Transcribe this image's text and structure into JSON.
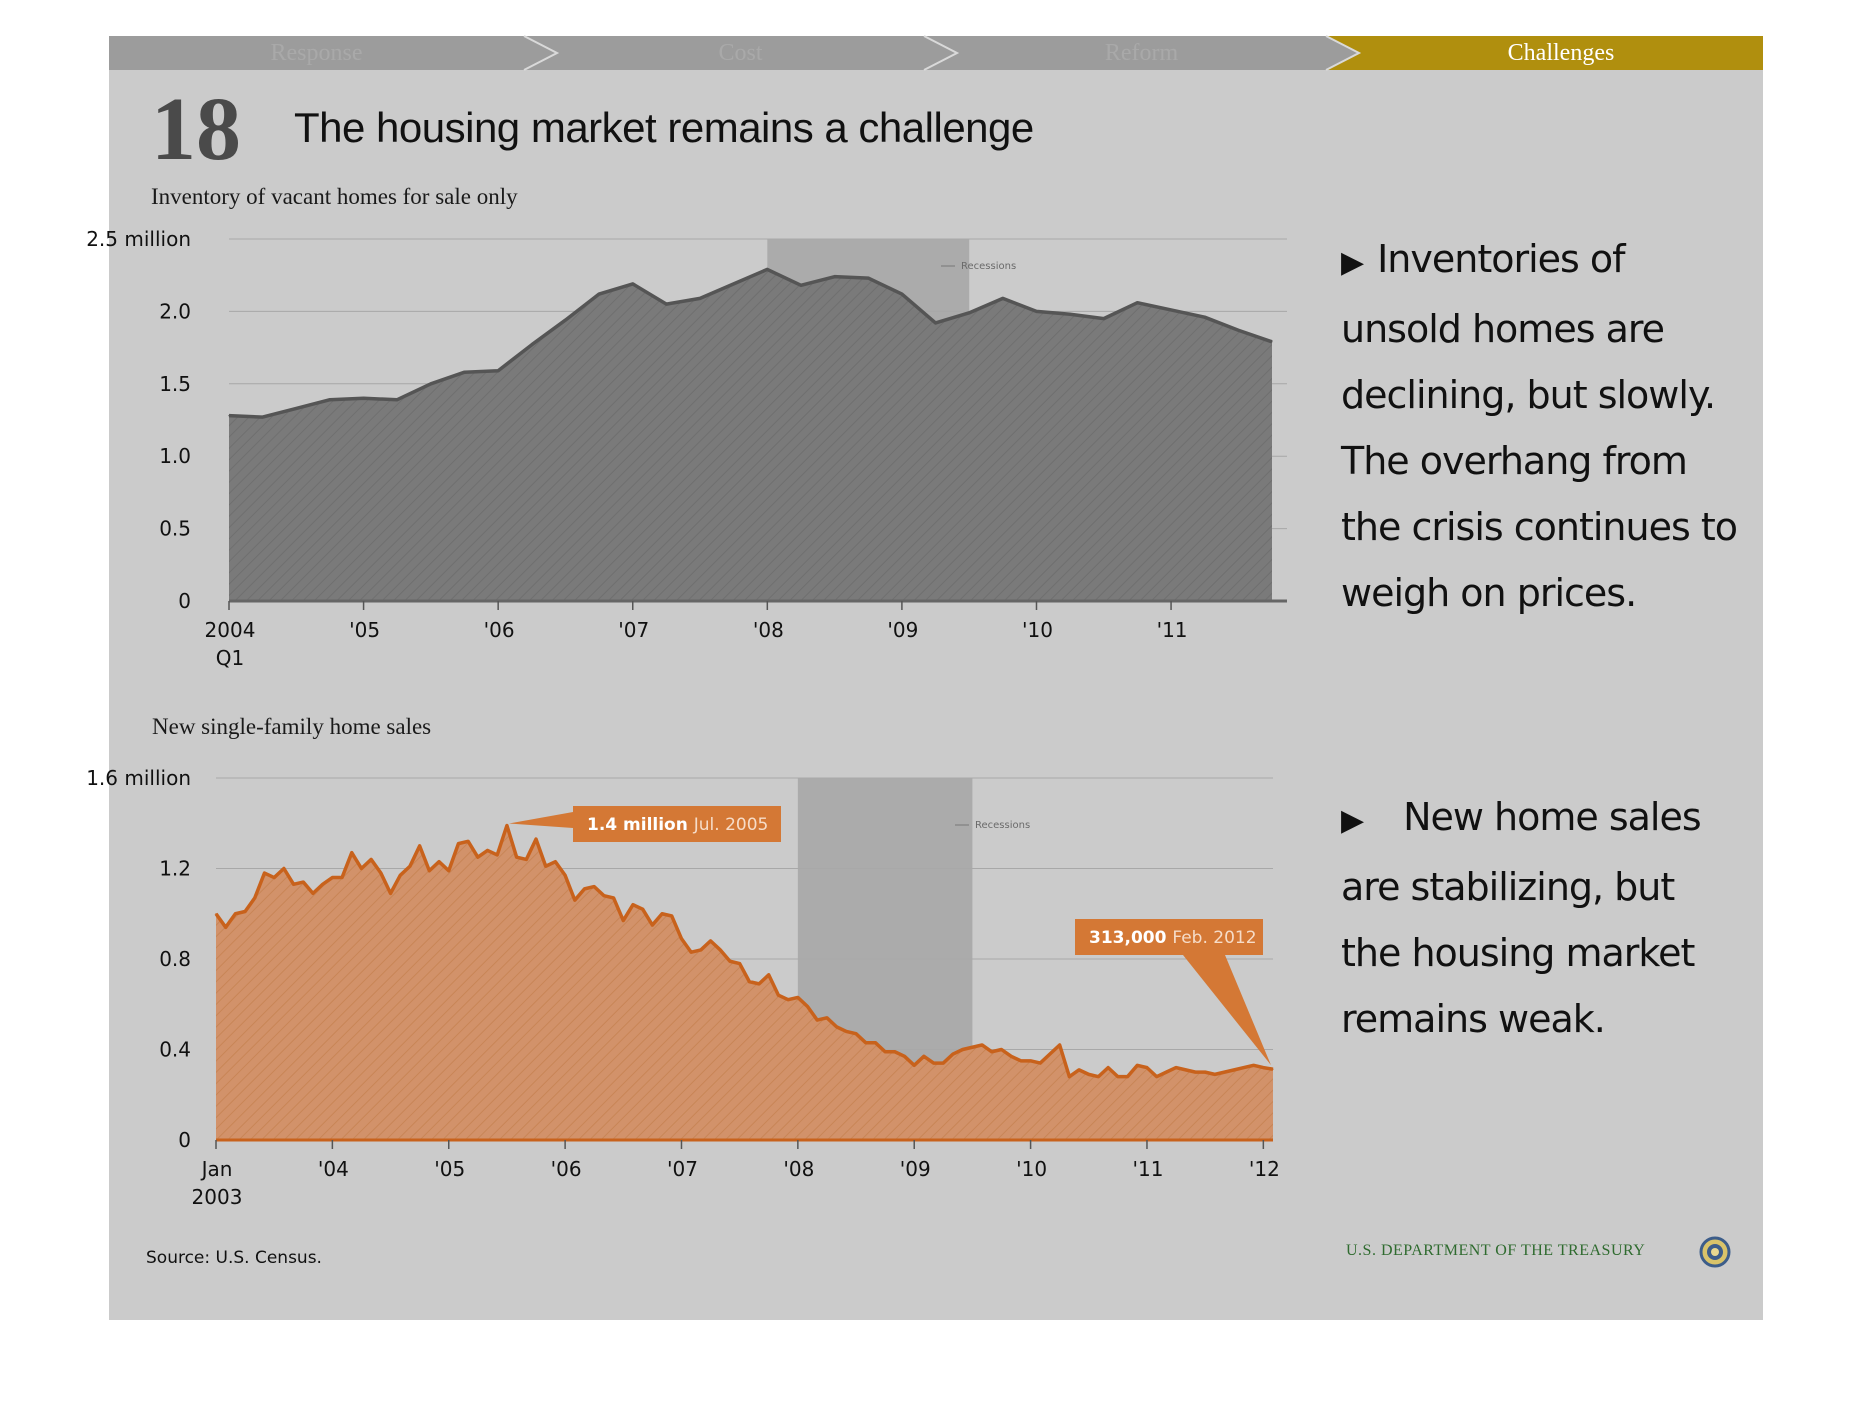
{
  "nav": {
    "steps": [
      "Response",
      "Cost",
      "Reform",
      "Challenges"
    ],
    "active_index": 3
  },
  "slide": {
    "number": "18",
    "title": "The housing market remains a challenge"
  },
  "colors": {
    "background": "#cbcbcb",
    "nav_inactive": "#9c9c9c",
    "nav_active": "#b08f0e",
    "inventory_fill": "#7a7a7a",
    "inventory_line": "#555555",
    "sales_fill": "#d2926a",
    "sales_line": "#c8621c",
    "recession": "#ababab",
    "callout": "#d47835",
    "treasury_text": "#2f6b2f"
  },
  "bullets": [
    {
      "icon": "triangle-right-icon",
      "text": "Inventories of unsold homes are declining, but slowly. The overhang from the crisis continues to weigh on prices."
    },
    {
      "icon": "triangle-right-icon",
      "text": "New home sales are stabilizing, but the housing market remains weak."
    }
  ],
  "source": "Source: U.S. Census.",
  "footer": {
    "agency": "U.S. DEPARTMENT OF THE TREASURY",
    "seal_icon": "treasury-seal-icon"
  },
  "chart_data": [
    {
      "type": "area",
      "title": "Inventory of vacant homes for sale only",
      "ytick_labels": [
        "0",
        "0.5",
        "1.0",
        "1.5",
        "2.0",
        "2.5 million"
      ],
      "ylim": [
        0,
        2.5
      ],
      "yticks": [
        0,
        0.5,
        1.0,
        1.5,
        2.0,
        2.5
      ],
      "xlim": [
        2004.0,
        2011.75
      ],
      "xticks": [
        {
          "x": 2004.0,
          "label": [
            "2004",
            "Q1"
          ]
        },
        {
          "x": 2005.0,
          "label": [
            "'05"
          ]
        },
        {
          "x": 2006.0,
          "label": [
            "'06"
          ]
        },
        {
          "x": 2007.0,
          "label": [
            "'07"
          ]
        },
        {
          "x": 2008.0,
          "label": [
            "'08"
          ]
        },
        {
          "x": 2009.0,
          "label": [
            "'09"
          ]
        },
        {
          "x": 2010.0,
          "label": [
            "'10"
          ]
        },
        {
          "x": 2011.0,
          "label": [
            "'11"
          ]
        }
      ],
      "grid": true,
      "recession": {
        "start": 2008.0,
        "end": 2009.5,
        "label": "Recessions"
      },
      "series": [
        {
          "x": [
            2004.0,
            2004.25,
            2004.5,
            2004.75,
            2005.0,
            2005.25,
            2005.5,
            2005.75,
            2006.0,
            2006.25,
            2006.5,
            2006.75,
            2007.0,
            2007.25,
            2007.5,
            2007.75,
            2008.0,
            2008.25,
            2008.5,
            2008.75,
            2009.0,
            2009.25,
            2009.5,
            2009.75,
            2010.0,
            2010.25,
            2010.5,
            2010.75,
            2011.0,
            2011.25,
            2011.5,
            2011.75
          ],
          "values": [
            1.28,
            1.27,
            1.33,
            1.39,
            1.4,
            1.39,
            1.5,
            1.58,
            1.59,
            1.77,
            1.94,
            2.12,
            2.19,
            2.05,
            2.09,
            2.19,
            2.29,
            2.18,
            2.24,
            2.23,
            2.12,
            1.92,
            1.99,
            2.09,
            2.0,
            1.98,
            1.95,
            2.06,
            2.01,
            1.96,
            1.87,
            1.79
          ]
        }
      ]
    },
    {
      "type": "area",
      "title": "New single-family home sales",
      "ytick_labels": [
        "0",
        "0.4",
        "0.8",
        "1.2",
        "1.6 million"
      ],
      "ylim": [
        0,
        1.6
      ],
      "yticks": [
        0,
        0.4,
        0.8,
        1.2,
        1.6
      ],
      "xlim": [
        2003.0,
        2012.083
      ],
      "xticks": [
        {
          "x": 2003.0,
          "label": [
            "Jan",
            "2003"
          ]
        },
        {
          "x": 2004.0,
          "label": [
            "'04"
          ]
        },
        {
          "x": 2005.0,
          "label": [
            "'05"
          ]
        },
        {
          "x": 2006.0,
          "label": [
            "'06"
          ]
        },
        {
          "x": 2007.0,
          "label": [
            "'07"
          ]
        },
        {
          "x": 2008.0,
          "label": [
            "'08"
          ]
        },
        {
          "x": 2009.0,
          "label": [
            "'09"
          ]
        },
        {
          "x": 2010.0,
          "label": [
            "'10"
          ]
        },
        {
          "x": 2011.0,
          "label": [
            "'11"
          ]
        },
        {
          "x": 2012.0,
          "label": [
            "'12"
          ]
        }
      ],
      "grid": true,
      "recession": {
        "start": 2008.0,
        "end": 2009.5,
        "label": "Recessions"
      },
      "annotations": [
        {
          "bold": "1.4 million",
          "text": "Jul. 2005",
          "x": 2005.5,
          "y": 1.39
        },
        {
          "bold": "313,000",
          "text": "Feb. 2012",
          "x": 2012.083,
          "y": 0.313
        }
      ],
      "series": [
        {
          "start": 2003.0,
          "step": 0.08333,
          "values": [
            1.0,
            0.94,
            1.0,
            1.01,
            1.07,
            1.18,
            1.16,
            1.2,
            1.13,
            1.14,
            1.09,
            1.13,
            1.16,
            1.16,
            1.27,
            1.2,
            1.24,
            1.18,
            1.09,
            1.17,
            1.21,
            1.3,
            1.19,
            1.23,
            1.19,
            1.31,
            1.32,
            1.25,
            1.28,
            1.26,
            1.39,
            1.25,
            1.24,
            1.33,
            1.21,
            1.23,
            1.17,
            1.06,
            1.11,
            1.12,
            1.08,
            1.07,
            0.97,
            1.04,
            1.02,
            0.95,
            1.0,
            0.99,
            0.89,
            0.83,
            0.84,
            0.88,
            0.84,
            0.79,
            0.78,
            0.7,
            0.69,
            0.73,
            0.64,
            0.62,
            0.63,
            0.59,
            0.53,
            0.54,
            0.5,
            0.48,
            0.47,
            0.43,
            0.43,
            0.39,
            0.39,
            0.37,
            0.33,
            0.37,
            0.34,
            0.34,
            0.38,
            0.4,
            0.41,
            0.42,
            0.39,
            0.4,
            0.37,
            0.35,
            0.35,
            0.34,
            0.38,
            0.42,
            0.28,
            0.31,
            0.29,
            0.28,
            0.32,
            0.28,
            0.28,
            0.33,
            0.32,
            0.28,
            0.3,
            0.32,
            0.31,
            0.3,
            0.3,
            0.29,
            0.3,
            0.31,
            0.32,
            0.33,
            0.32,
            0.313
          ]
        }
      ]
    }
  ]
}
